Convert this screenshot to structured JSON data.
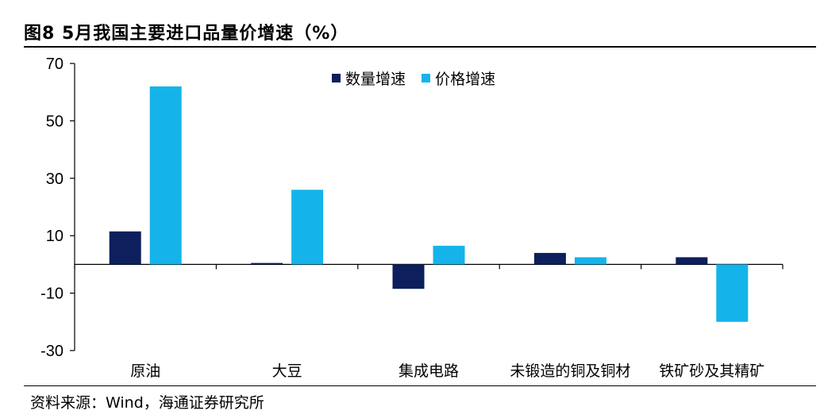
{
  "header": {
    "title": "图8  5月我国主要进口品量价增速（%）"
  },
  "footer": {
    "source": "资料来源：Wind，海通证券研究所"
  },
  "colors": {
    "quantity": "#0d1f5c",
    "price": "#14b4ea",
    "axis": "#000000"
  },
  "chart_data": {
    "type": "bar",
    "categories": [
      "原油",
      "大豆",
      "集成电路",
      "未锻造的铜及铜材",
      "铁矿砂及其精矿"
    ],
    "series": [
      {
        "name": "数量增速",
        "values": [
          11.5,
          0.5,
          -8.5,
          4.0,
          2.5
        ]
      },
      {
        "name": "价格增速",
        "values": [
          62.0,
          26.0,
          6.5,
          2.5,
          -20.0
        ]
      }
    ],
    "ylim": [
      -30,
      70
    ],
    "yticks": [
      "70",
      "50",
      "30",
      "10",
      "-10",
      "-30"
    ],
    "ytick_values": [
      70,
      50,
      30,
      10,
      -10,
      -30
    ],
    "grid": false,
    "legend_position": "top-center"
  }
}
